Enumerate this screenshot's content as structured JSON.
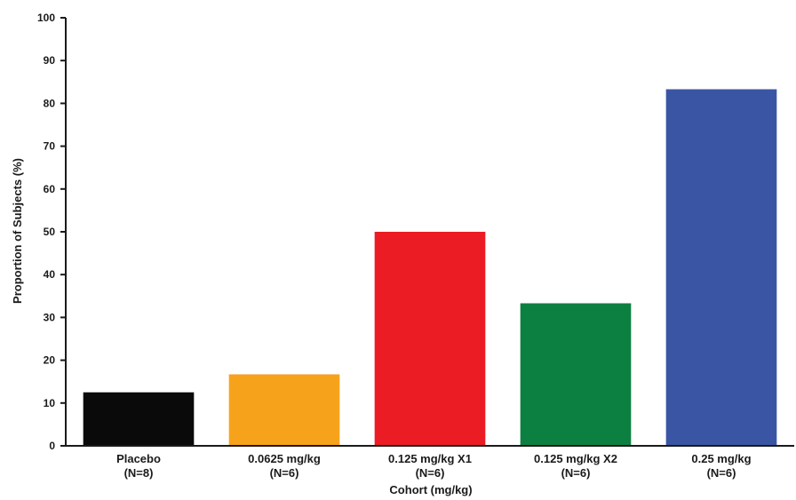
{
  "chart_data": {
    "type": "bar",
    "categories": [
      "Placebo",
      "0.0625 mg/kg",
      "0.125 mg/kg X1",
      "0.125 mg/kg X2",
      "0.25 mg/kg"
    ],
    "sublabels": [
      "(N=8)",
      "(N=6)",
      "(N=6)",
      "(N=6)",
      "(N=6)"
    ],
    "values": [
      12.5,
      16.7,
      50.0,
      33.3,
      83.3
    ],
    "colors": [
      "#0a0a0a",
      "#f7a21b",
      "#ec1c24",
      "#0c8040",
      "#3a55a4"
    ],
    "title": "",
    "xlabel": "Cohort (mg/kg)",
    "ylabel": "Proportion of Subjects (%)",
    "ylim": [
      0,
      100
    ],
    "yticks": [
      0,
      10,
      20,
      30,
      40,
      50,
      60,
      70,
      80,
      90,
      100
    ],
    "grid": false,
    "legend": "none"
  }
}
